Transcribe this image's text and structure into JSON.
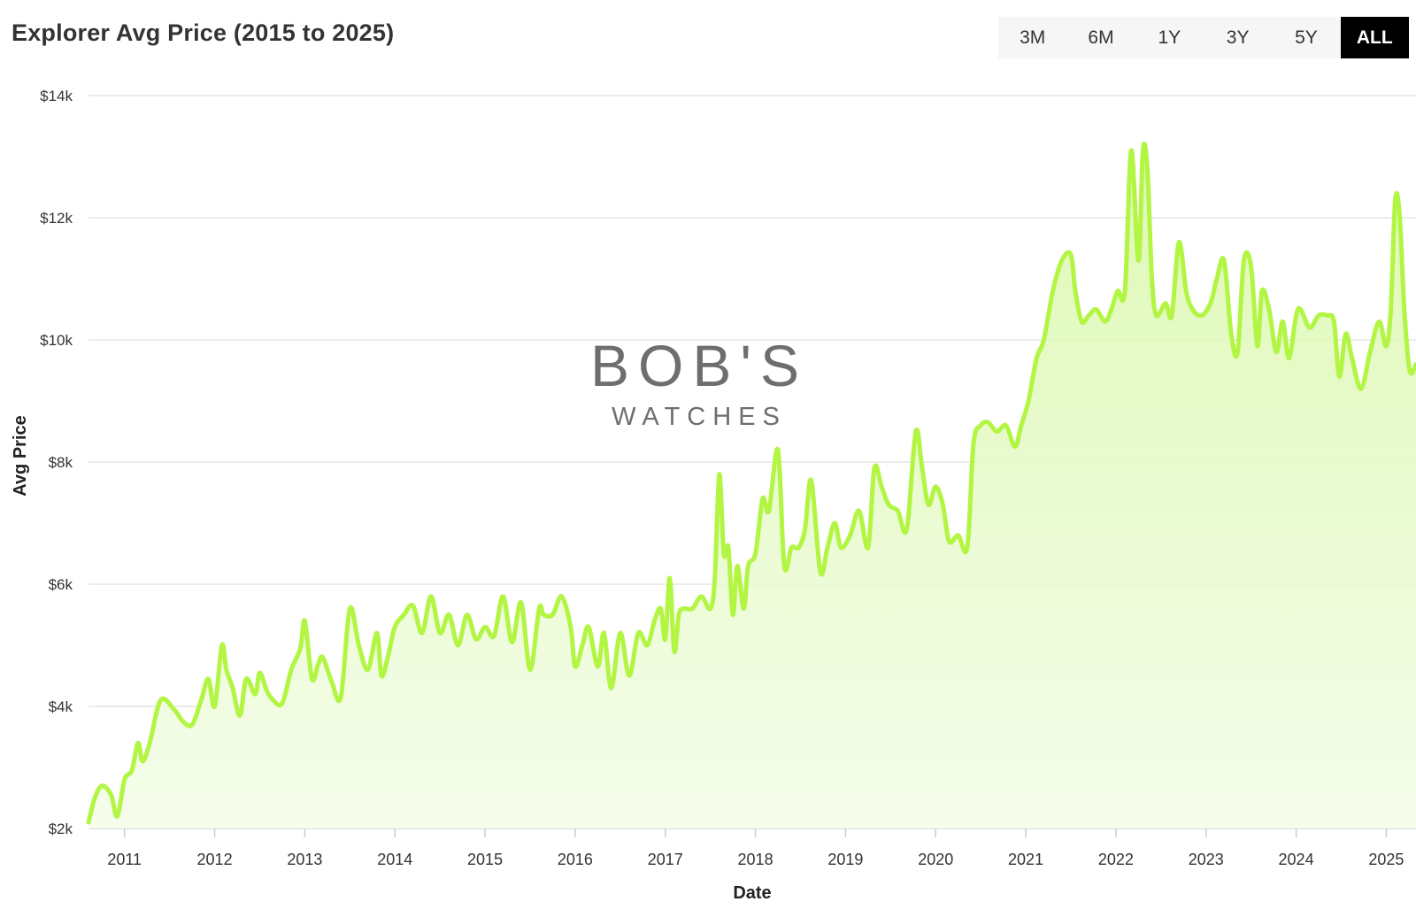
{
  "title": "Explorer Avg Price (2015 to 2025)",
  "range_buttons": [
    {
      "label": "3M",
      "active": false
    },
    {
      "label": "6M",
      "active": false
    },
    {
      "label": "1Y",
      "active": false
    },
    {
      "label": "3Y",
      "active": false
    },
    {
      "label": "5Y",
      "active": false
    },
    {
      "label": "ALL",
      "active": true
    }
  ],
  "watermark": {
    "line1": "BOB'S",
    "line2": "WATCHES"
  },
  "colors": {
    "line": "#b2f542",
    "fill_top": "#d8f7a8",
    "fill_bottom": "#f4fde8",
    "grid": "#e6e6e6",
    "active_button_bg": "#000000",
    "button_bar_bg": "#f6f6f6"
  },
  "chart_data": {
    "type": "area",
    "title": "Explorer Avg Price (2015 to 2025)",
    "xlabel": "Date",
    "ylabel": "Avg Price",
    "xlim": [
      2010.6,
      2025.33
    ],
    "ylim": [
      2000,
      14000
    ],
    "yticks": [
      2000,
      4000,
      6000,
      8000,
      10000,
      12000,
      14000
    ],
    "ytick_labels": [
      "$2k",
      "$4k",
      "$6k",
      "$8k",
      "$10k",
      "$12k",
      "$14k"
    ],
    "xticks": [
      2011,
      2012,
      2013,
      2014,
      2015,
      2016,
      2017,
      2018,
      2019,
      2020,
      2021,
      2022,
      2023,
      2024,
      2025
    ],
    "xtick_labels": [
      "2011",
      "2012",
      "2013",
      "2014",
      "2015",
      "2016",
      "2017",
      "2018",
      "2019",
      "2020",
      "2021",
      "2022",
      "2023",
      "2024",
      "2025"
    ],
    "grid": true,
    "legend": "none",
    "series": [
      {
        "x": [
          2010.6,
          2010.67,
          2010.75,
          2010.85,
          2010.92,
          2011.0,
          2011.08,
          2011.15,
          2011.2,
          2011.28,
          2011.4,
          2011.55,
          2011.65,
          2011.75,
          2011.85,
          2011.93,
          2012.0,
          2012.08,
          2012.13,
          2012.2,
          2012.28,
          2012.35,
          2012.45,
          2012.5,
          2012.58,
          2012.65,
          2012.75,
          2012.85,
          2012.95,
          2013.0,
          2013.08,
          2013.15,
          2013.2,
          2013.3,
          2013.4,
          2013.5,
          2013.6,
          2013.7,
          2013.8,
          2013.85,
          2013.92,
          2014.0,
          2014.1,
          2014.2,
          2014.3,
          2014.4,
          2014.5,
          2014.6,
          2014.7,
          2014.8,
          2014.9,
          2015.0,
          2015.1,
          2015.2,
          2015.3,
          2015.4,
          2015.5,
          2015.6,
          2015.65,
          2015.75,
          2015.85,
          2015.95,
          2016.0,
          2016.08,
          2016.15,
          2016.25,
          2016.32,
          2016.4,
          2016.5,
          2016.6,
          2016.7,
          2016.8,
          2016.88,
          2016.95,
          2017.0,
          2017.05,
          2017.1,
          2017.15,
          2017.2,
          2017.3,
          2017.4,
          2017.5,
          2017.55,
          2017.6,
          2017.65,
          2017.7,
          2017.75,
          2017.8,
          2017.87,
          2017.92,
          2018.0,
          2018.08,
          2018.15,
          2018.25,
          2018.32,
          2018.4,
          2018.48,
          2018.55,
          2018.62,
          2018.72,
          2018.8,
          2018.88,
          2018.95,
          2019.05,
          2019.15,
          2019.25,
          2019.32,
          2019.4,
          2019.48,
          2019.58,
          2019.68,
          2019.78,
          2019.85,
          2019.92,
          2020.0,
          2020.08,
          2020.15,
          2020.25,
          2020.35,
          2020.42,
          2020.5,
          2020.58,
          2020.68,
          2020.78,
          2020.88,
          2020.95,
          2021.03,
          2021.12,
          2021.2,
          2021.3,
          2021.4,
          2021.5,
          2021.55,
          2021.62,
          2021.7,
          2021.78,
          2021.88,
          2021.95,
          2022.02,
          2022.1,
          2022.17,
          2022.25,
          2022.3,
          2022.35,
          2022.4,
          2022.45,
          2022.55,
          2022.62,
          2022.7,
          2022.78,
          2022.85,
          2022.95,
          2023.05,
          2023.12,
          2023.2,
          2023.28,
          2023.35,
          2023.42,
          2023.5,
          2023.57,
          2023.62,
          2023.7,
          2023.78,
          2023.85,
          2023.92,
          2024.0,
          2024.05,
          2024.15,
          2024.25,
          2024.35,
          2024.42,
          2024.48,
          2024.55,
          2024.62,
          2024.72,
          2024.82,
          2024.92,
          2025.0,
          2025.05,
          2025.1,
          2025.15,
          2025.2,
          2025.26,
          2025.33
        ],
        "y": [
          2100,
          2500,
          2700,
          2550,
          2200,
          2800,
          2950,
          3400,
          3100,
          3400,
          4100,
          3950,
          3750,
          3700,
          4100,
          4450,
          4000,
          5000,
          4600,
          4300,
          3850,
          4450,
          4200,
          4550,
          4250,
          4100,
          4050,
          4600,
          4950,
          5400,
          4450,
          4700,
          4800,
          4400,
          4150,
          5600,
          5000,
          4600,
          5200,
          4500,
          4800,
          5300,
          5500,
          5650,
          5200,
          5800,
          5200,
          5500,
          5000,
          5500,
          5100,
          5300,
          5150,
          5800,
          5050,
          5700,
          4600,
          5600,
          5500,
          5500,
          5800,
          5300,
          4650,
          5000,
          5300,
          4650,
          5200,
          4300,
          5200,
          4500,
          5200,
          5000,
          5400,
          5600,
          5100,
          6100,
          4900,
          5500,
          5600,
          5600,
          5800,
          5600,
          6100,
          7800,
          6500,
          6600,
          5500,
          6300,
          5600,
          6300,
          6500,
          7400,
          7200,
          8200,
          6300,
          6600,
          6600,
          6900,
          7700,
          6200,
          6600,
          7000,
          6600,
          6800,
          7200,
          6600,
          7900,
          7600,
          7300,
          7200,
          6900,
          8500,
          7900,
          7300,
          7600,
          7300,
          6700,
          6800,
          6600,
          8300,
          8600,
          8650,
          8500,
          8600,
          8250,
          8600,
          9000,
          9700,
          10000,
          10800,
          11300,
          11400,
          10800,
          10300,
          10400,
          10500,
          10300,
          10500,
          10800,
          10800,
          13100,
          11300,
          13100,
          12800,
          11000,
          10400,
          10600,
          10400,
          11600,
          10800,
          10500,
          10400,
          10600,
          11000,
          11300,
          10100,
          9800,
          11300,
          11200,
          9900,
          10800,
          10500,
          9800,
          10300,
          9700,
          10400,
          10500,
          10200,
          10400,
          10400,
          10300,
          9400,
          10100,
          9700,
          9200,
          9800,
          10300,
          9900,
          10500,
          12300,
          12000,
          10500,
          9500,
          9600
        ]
      }
    ]
  }
}
